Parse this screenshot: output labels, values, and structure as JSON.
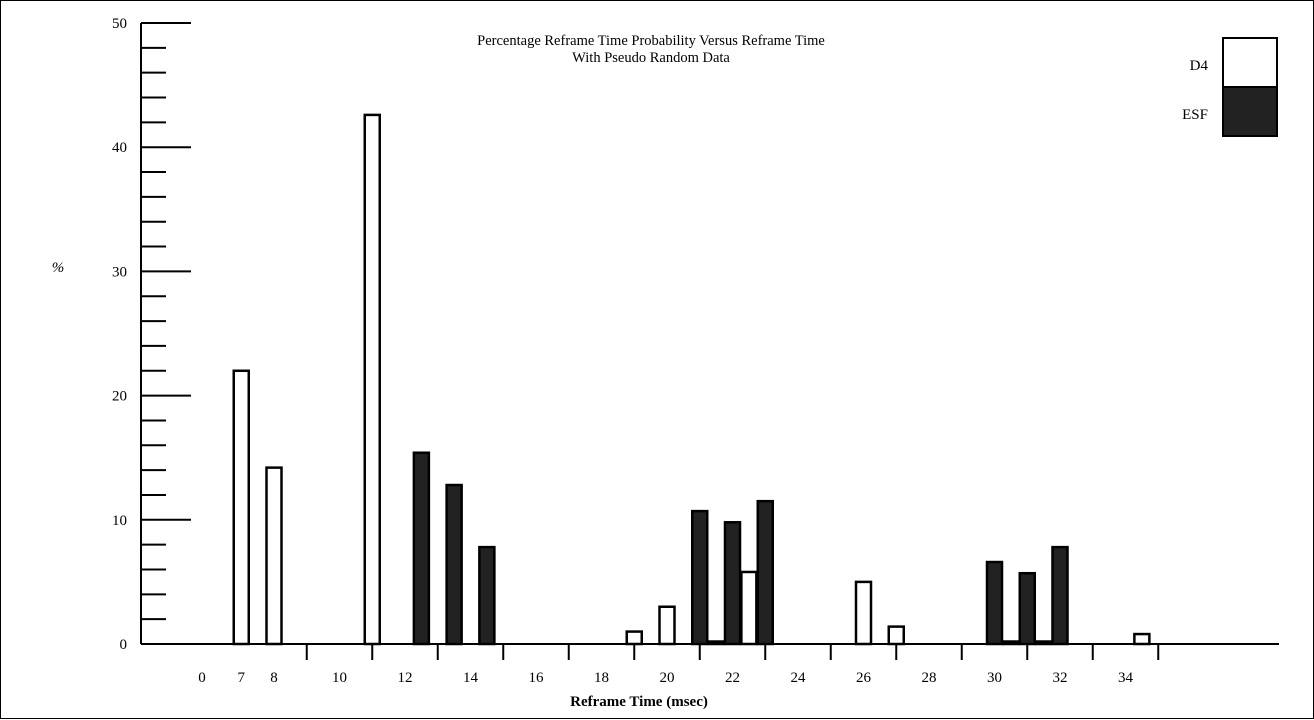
{
  "chart_data": {
    "type": "bar",
    "title_line1": "Percentage Reframe Time Probability Versus Reframe Time",
    "title_line2": "With Pseudo Random Data",
    "xlabel": "Reframe Time (msec)",
    "ylabel": "%",
    "ylim": [
      0,
      50
    ],
    "y_major_ticks": [
      0,
      10,
      20,
      30,
      40,
      50
    ],
    "y_minor_step": 2,
    "x_tick_labels": [
      "0",
      "7",
      "8",
      "10",
      "12",
      "14",
      "16",
      "18",
      "20",
      "22",
      "24",
      "26",
      "28",
      "30",
      "32",
      "34"
    ],
    "grid": false,
    "legend_position": "top-right",
    "series": [
      {
        "name": "D4",
        "color": "#ffffff",
        "points": [
          {
            "x": "7",
            "y": 22
          },
          {
            "x": "8",
            "y": 14.2
          },
          {
            "x": "11",
            "y": 42.6
          },
          {
            "x": "19",
            "y": 1
          },
          {
            "x": "20",
            "y": 3
          },
          {
            "x": "21.5",
            "y": 0.2
          },
          {
            "x": "22.5",
            "y": 5.8
          },
          {
            "x": "26",
            "y": 5
          },
          {
            "x": "27",
            "y": 1.4
          },
          {
            "x": "30.5",
            "y": 0.2
          },
          {
            "x": "31.5",
            "y": 0.2
          },
          {
            "x": "34.5",
            "y": 0.8
          }
        ]
      },
      {
        "name": "ESF",
        "color": "#222222",
        "points": [
          {
            "x": "12.5",
            "y": 15.4
          },
          {
            "x": "13.5",
            "y": 12.8
          },
          {
            "x": "14.5",
            "y": 7.8
          },
          {
            "x": "21",
            "y": 10.7
          },
          {
            "x": "22",
            "y": 9.8
          },
          {
            "x": "23",
            "y": 11.5
          },
          {
            "x": "30",
            "y": 6.6
          },
          {
            "x": "31",
            "y": 5.7
          },
          {
            "x": "32",
            "y": 7.8
          }
        ]
      }
    ]
  }
}
